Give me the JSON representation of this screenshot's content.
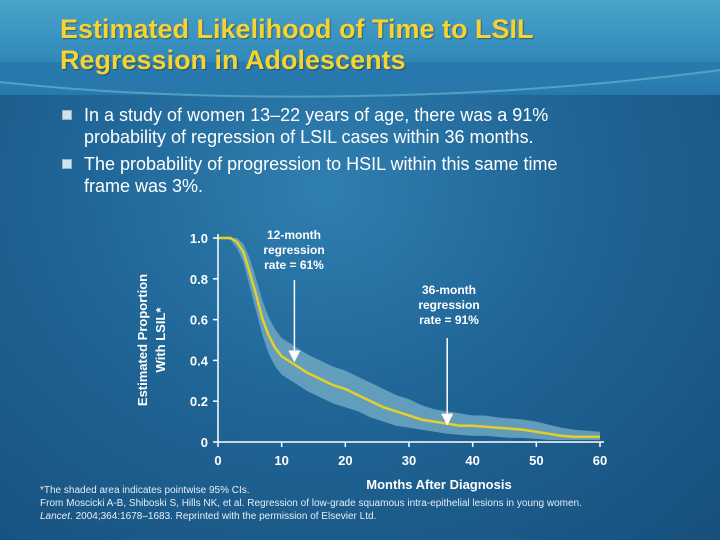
{
  "slide": {
    "title_line1": "Estimated Likelihood of Time to LSIL",
    "title_line2": "Regression in Adolescents",
    "bullets": [
      {
        "line1": "In a study of women 13–22 years of age, there was a 91%",
        "line2": "probability of regression of LSIL cases within 36 months."
      },
      {
        "line1": "The probability of progression to HSIL within this same time",
        "line2": "frame was 3%."
      }
    ],
    "footnote": {
      "line1": "*The shaded area indicates pointwise 95% CIs.",
      "line2": "From Moscicki A-B, Shiboski S, Hills NK, et al. Regression of low-grade squamous intra-epithelial lesions in young women.",
      "line3_journal": "Lancet",
      "line3_rest": ". 2004;364:1678–1683. Reprinted with the permission of Elsevier Ltd."
    }
  },
  "colors": {
    "title": "#f7d230",
    "curve": "#e7cf2a",
    "ci_band": "#6fa7c2",
    "annotation_text": "#ffffff",
    "arrow": "#ffffff"
  },
  "chart_data": {
    "type": "line",
    "title": "",
    "xlabel": "Months After Diagnosis",
    "ylabel_line1": "Estimated Proportion",
    "ylabel_line2": "With LSIL*",
    "xlim": [
      0,
      60
    ],
    "ylim": [
      0,
      1.0
    ],
    "xticks": [
      "0",
      "10",
      "20",
      "30",
      "40",
      "50",
      "60"
    ],
    "yticks": [
      "0",
      "0.2",
      "0.4",
      "0.6",
      "0.8",
      "1.0"
    ],
    "series": [
      {
        "name": "Estimated proportion with LSIL",
        "x": [
          0,
          2,
          3,
          4,
          5,
          6,
          7,
          8,
          9,
          10,
          12,
          14,
          16,
          18,
          20,
          22,
          24,
          26,
          28,
          30,
          32,
          34,
          36,
          38,
          40,
          42,
          44,
          46,
          48,
          50,
          52,
          54,
          56,
          58,
          60
        ],
        "y": [
          1.0,
          1.0,
          0.98,
          0.93,
          0.83,
          0.72,
          0.6,
          0.52,
          0.46,
          0.42,
          0.38,
          0.34,
          0.31,
          0.28,
          0.26,
          0.23,
          0.2,
          0.17,
          0.15,
          0.13,
          0.11,
          0.1,
          0.09,
          0.08,
          0.08,
          0.075,
          0.07,
          0.065,
          0.06,
          0.05,
          0.04,
          0.03,
          0.025,
          0.025,
          0.025
        ],
        "ci_lower": [
          1.0,
          0.99,
          0.95,
          0.88,
          0.76,
          0.64,
          0.52,
          0.43,
          0.37,
          0.33,
          0.29,
          0.25,
          0.22,
          0.19,
          0.17,
          0.15,
          0.12,
          0.1,
          0.08,
          0.07,
          0.06,
          0.05,
          0.04,
          0.035,
          0.03,
          0.03,
          0.025,
          0.02,
          0.02,
          0.015,
          0.01,
          0.01,
          0.01,
          0.01,
          0.01
        ],
        "ci_upper": [
          1.0,
          1.0,
          1.0,
          0.97,
          0.9,
          0.8,
          0.69,
          0.61,
          0.55,
          0.51,
          0.47,
          0.43,
          0.4,
          0.37,
          0.35,
          0.32,
          0.29,
          0.26,
          0.23,
          0.21,
          0.18,
          0.16,
          0.15,
          0.14,
          0.13,
          0.13,
          0.12,
          0.115,
          0.11,
          0.1,
          0.085,
          0.07,
          0.06,
          0.055,
          0.05
        ]
      }
    ],
    "annotations": [
      {
        "lines": [
          "12-month",
          "regression",
          "rate = 61%"
        ],
        "x": 12,
        "y": 0.4
      },
      {
        "lines": [
          "36-month",
          "regression",
          "rate = 91%"
        ],
        "x": 36,
        "y": 0.09
      }
    ]
  }
}
